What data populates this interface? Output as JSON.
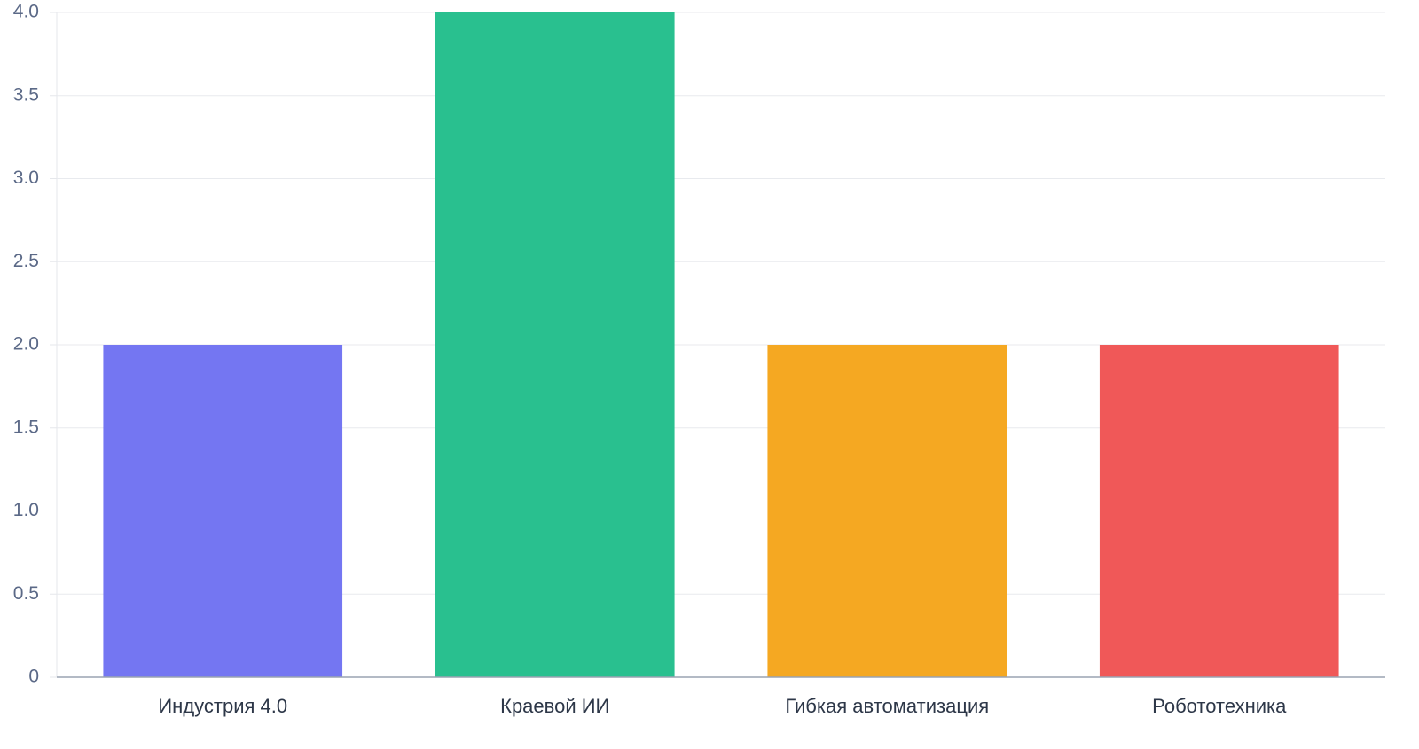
{
  "chart_data": {
    "type": "bar",
    "categories": [
      "Индустрия 4.0",
      "Краевой ИИ",
      "Гибкая автоматизация",
      "Робототехника"
    ],
    "values": [
      2,
      4,
      2,
      2
    ],
    "colors": [
      "#7476f2",
      "#29c08f",
      "#f5a822",
      "#f05858"
    ],
    "ylim": [
      0,
      4
    ],
    "yticks": [
      0,
      0.5,
      {
        "value": 1,
        "label": "1.0"
      },
      1.5,
      {
        "value": 2,
        "label": "2.0"
      },
      2.5,
      {
        "value": 3,
        "label": "3.0"
      },
      3.5,
      {
        "value": 4,
        "label": "4.0"
      }
    ],
    "grid": true
  }
}
